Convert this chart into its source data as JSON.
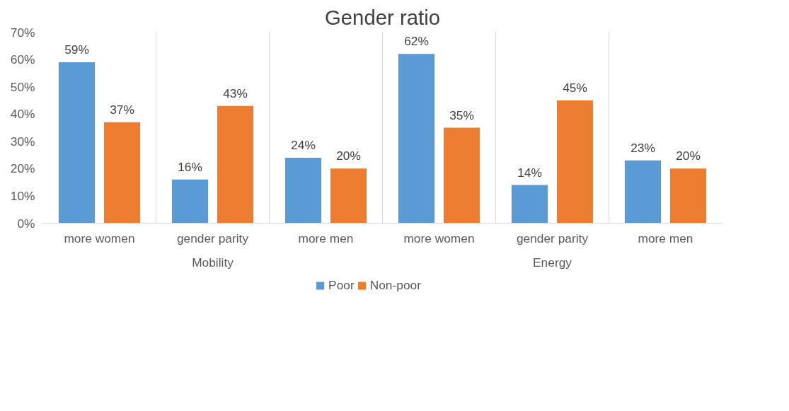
{
  "chart_data": {
    "type": "bar",
    "title": "Gender ratio",
    "categories": [
      "more women",
      "gender parity",
      "more men",
      "more women",
      "gender parity",
      "more men"
    ],
    "annotations": [
      "Mobility",
      "Energy"
    ],
    "series": [
      {
        "name": "Poor",
        "color": "#5b9bd5",
        "values": [
          59,
          16,
          24,
          62,
          14,
          23
        ],
        "value_labels": [
          "59%",
          "16%",
          "24%",
          "62%",
          "14%",
          "23%"
        ]
      },
      {
        "name": "Non-poor",
        "color": "#ed7d31",
        "values": [
          37,
          43,
          20,
          35,
          45,
          20
        ],
        "value_labels": [
          "37%",
          "43%",
          "20%",
          "35%",
          "45%",
          "20%"
        ]
      }
    ],
    "ylim": [
      0,
      70
    ],
    "yticks": [
      {
        "value": 0,
        "label": "0%"
      },
      {
        "value": 10,
        "label": "10%"
      },
      {
        "value": 20,
        "label": "20%"
      },
      {
        "value": 30,
        "label": "30%"
      },
      {
        "value": 40,
        "label": "40%"
      },
      {
        "value": 50,
        "label": "50%"
      },
      {
        "value": 60,
        "label": "60%"
      },
      {
        "value": 70,
        "label": "70%"
      }
    ],
    "grid": "x",
    "legend": "bottom"
  }
}
